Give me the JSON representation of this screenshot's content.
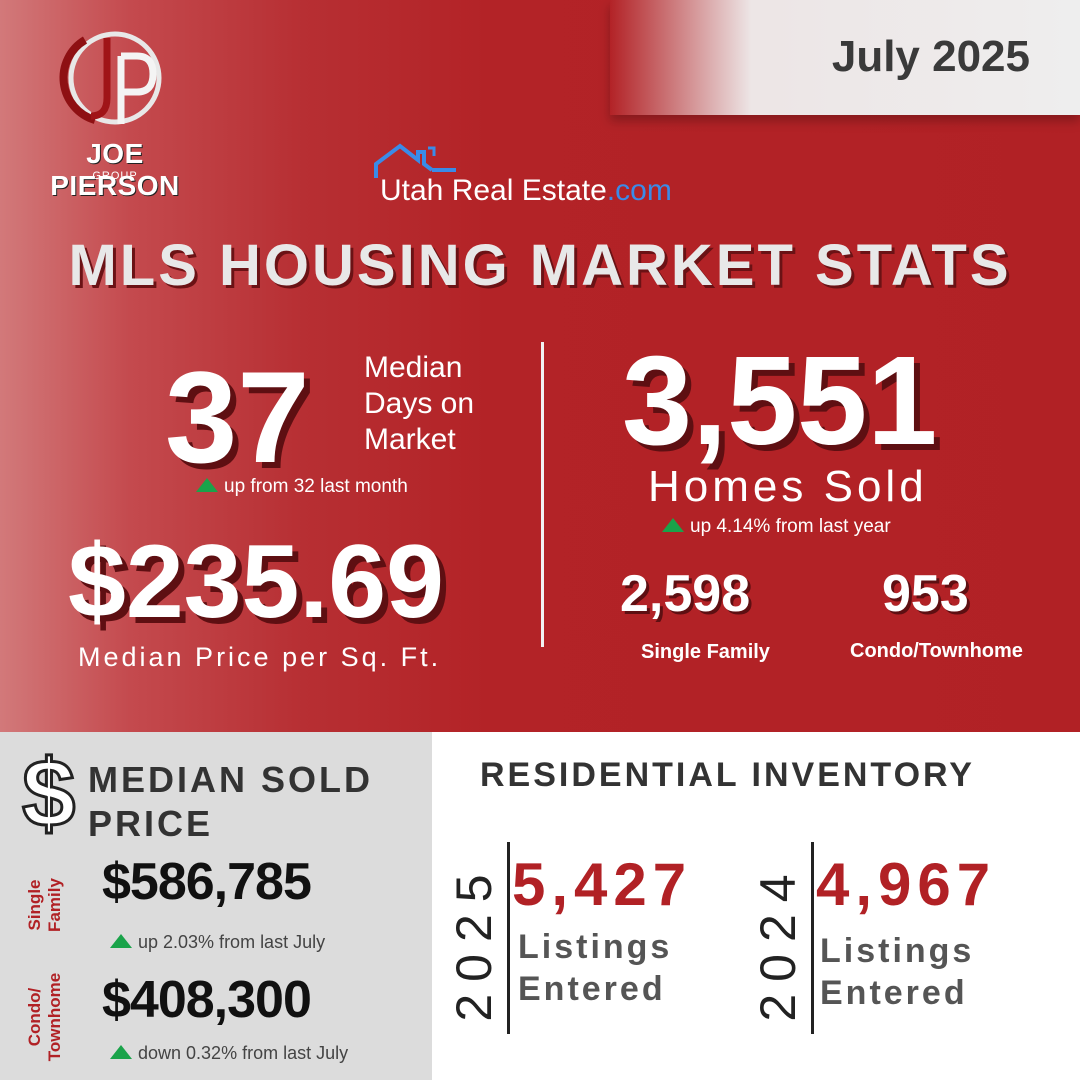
{
  "header": {
    "date": "July 2025",
    "brand_name": "JOE PIERSON",
    "brand_sub": "GROUP",
    "logo_letters": "JP",
    "partner_main": "Utah Real Estate",
    "partner_tld": ".com",
    "title": "MLS HOUSING MARKET STATS"
  },
  "days_on_market": {
    "value": "37",
    "label_lines": [
      "Median",
      "Days on",
      "Market"
    ],
    "change": "up from 32 last month"
  },
  "price_per_sqft": {
    "value": "$235.69",
    "label": "Median Price per Sq. Ft."
  },
  "homes_sold": {
    "value": "3,551",
    "label": "Homes Sold",
    "change": "up 4.14% from last year",
    "single_family_value": "2,598",
    "single_family_label": "Single Family",
    "condo_value": "953",
    "condo_label": "Condo/Townhome"
  },
  "median_sold_price": {
    "title_line1": "MEDIAN SOLD",
    "title_line2": "PRICE",
    "dollar_icon": "$",
    "single_family_label_1": "Single",
    "single_family_label_2": "Family",
    "single_family_value": "$586,785",
    "single_family_change": "up 2.03% from last July",
    "condo_label_1": "Condo/",
    "condo_label_2": "Townhome",
    "condo_value": "$408,300",
    "condo_change": "down 0.32% from last July"
  },
  "inventory": {
    "title": "RESIDENTIAL INVENTORY",
    "years": [
      {
        "year": "2025",
        "value": "5,427",
        "label1": "Listings",
        "label2": "Entered"
      },
      {
        "year": "2024",
        "value": "4,967",
        "label1": "Listings",
        "label2": "Entered"
      }
    ]
  },
  "colors": {
    "brand_red": "#b12125",
    "up_arrow": "#1aa34a",
    "partner_blue": "#3a8be8"
  }
}
